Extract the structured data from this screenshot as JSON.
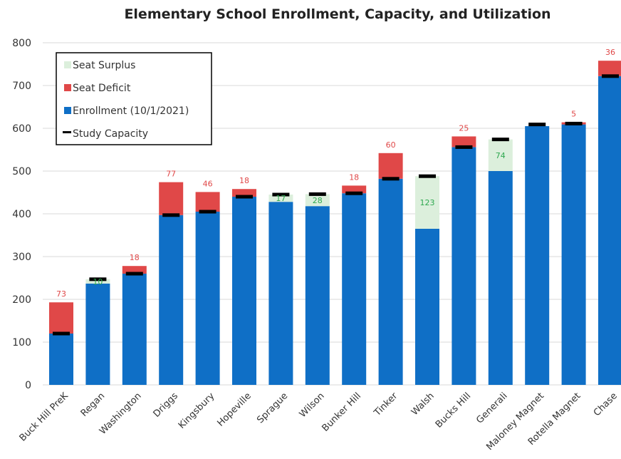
{
  "chart_data": {
    "type": "bar",
    "stacked": true,
    "title": "Elementary School Enrollment, Capacity, and Utilization",
    "xlabel": "",
    "ylabel": "",
    "ylim": [
      0,
      800
    ],
    "yticks": [
      "0",
      "100",
      "200",
      "300",
      "400",
      "500",
      "600",
      "700",
      "800"
    ],
    "grid": true,
    "legend_position": "top-left",
    "categories": [
      "Buck Hill PreK",
      "Regan",
      "Washington",
      "Driggs",
      "Kingsbury",
      "Hopeville",
      "Sprague",
      "Wilson",
      "Bunker Hill",
      "Tinker",
      "Walsh",
      "Bucks Hill",
      "Generali",
      "Maloney Magnet",
      "Rotella Magnet",
      "Chase"
    ],
    "series": [
      {
        "name": "Enrollment (10/1/2021)",
        "color": "#0f6fc6",
        "values": [
          120,
          237,
          260,
          397,
          405,
          440,
          428,
          418,
          448,
          482,
          365,
          556,
          500,
          605,
          609,
          722
        ]
      },
      {
        "name": "Seat Surplus",
        "color": "#dcefdc",
        "values": [
          0,
          10,
          0,
          0,
          0,
          0,
          17,
          28,
          0,
          0,
          123,
          0,
          74,
          0,
          0,
          0
        ],
        "labels": [
          "",
          "10",
          "",
          "",
          "",
          "",
          "17",
          "28",
          "",
          "",
          "123",
          "",
          "74",
          "",
          "",
          ""
        ]
      },
      {
        "name": "Seat Deficit",
        "color": "#e04848",
        "values": [
          73,
          0,
          18,
          77,
          46,
          18,
          0,
          0,
          18,
          60,
          0,
          25,
          0,
          0,
          5,
          36
        ],
        "labels": [
          "73",
          "",
          "18",
          "77",
          "46",
          "18",
          "",
          "",
          "18",
          "60",
          "",
          "25",
          "",
          "",
          "5",
          "36"
        ]
      }
    ],
    "study_capacity": {
      "name": "Study Capacity",
      "color": "#000000",
      "values": [
        120,
        247,
        260,
        397,
        405,
        440,
        445,
        446,
        448,
        482,
        488,
        556,
        574,
        609,
        611,
        722
      ]
    },
    "legend": [
      "Seat Surplus",
      "Seat Deficit",
      "Enrollment (10/1/2021)",
      "Study Capacity"
    ],
    "label_colors": {
      "surplus": "#2ea84f",
      "deficit": "#e04848"
    }
  }
}
